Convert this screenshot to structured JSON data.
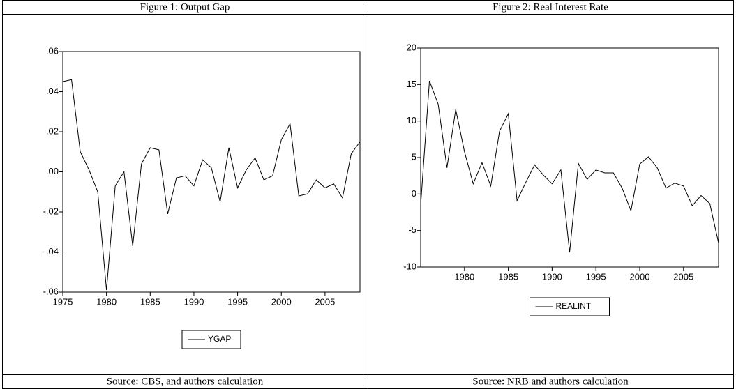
{
  "chart_data": [
    {
      "type": "line",
      "title": "Figure 1: Output Gap",
      "source": "Source: CBS, and authors calculation",
      "x": [
        1975,
        1976,
        1977,
        1978,
        1979,
        1980,
        1981,
        1982,
        1983,
        1984,
        1985,
        1986,
        1987,
        1988,
        1989,
        1990,
        1991,
        1992,
        1993,
        1994,
        1995,
        1996,
        1997,
        1998,
        1999,
        2000,
        2001,
        2002,
        2003,
        2004,
        2005,
        2006,
        2007,
        2008,
        2009
      ],
      "series": [
        {
          "name": "YGAP",
          "color": "#000000",
          "values": [
            0.045,
            0.046,
            0.01,
            0.001,
            -0.01,
            -0.059,
            -0.007,
            0.0,
            -0.037,
            0.004,
            0.012,
            0.011,
            -0.021,
            -0.003,
            -0.002,
            -0.007,
            0.006,
            0.002,
            -0.015,
            0.012,
            -0.008,
            0.001,
            0.007,
            -0.004,
            -0.002,
            0.016,
            0.024,
            -0.012,
            -0.011,
            -0.004,
            -0.008,
            -0.006,
            -0.013,
            0.009,
            0.015
          ]
        }
      ],
      "xlim": [
        1975,
        2009
      ],
      "xticks": [
        1975,
        1980,
        1985,
        1990,
        1995,
        2000,
        2005
      ],
      "ylim": [
        -0.06,
        0.06
      ],
      "yticks": [
        {
          "value": -0.06,
          "label": "-.06"
        },
        {
          "value": -0.04,
          "label": "-.04"
        },
        {
          "value": -0.02,
          "label": "-.02"
        },
        {
          "value": 0,
          "label": ".00"
        },
        {
          "value": 0.02,
          "label": ".02"
        },
        {
          "value": 0.04,
          "label": ".04"
        },
        {
          "value": 0.06,
          "label": ".06"
        }
      ],
      "grid": false,
      "legend": "bottom"
    },
    {
      "type": "line",
      "title": "Figure 2:  Real Interest Rate",
      "source": "Source: NRB and authors calculation",
      "x": [
        1975,
        1976,
        1977,
        1978,
        1979,
        1980,
        1981,
        1982,
        1983,
        1984,
        1985,
        1986,
        1987,
        1988,
        1989,
        1990,
        1991,
        1992,
        1993,
        1994,
        1995,
        1996,
        1997,
        1998,
        1999,
        2000,
        2001,
        2002,
        2003,
        2004,
        2005,
        2006,
        2007,
        2008,
        2009
      ],
      "series": [
        {
          "name": "REALINT",
          "color": "#000000",
          "values": [
            -1.5,
            15.5,
            12.3,
            3.6,
            11.6,
            5.8,
            1.4,
            4.3,
            1.1,
            8.6,
            11.0,
            -0.9,
            1.6,
            4.0,
            2.6,
            1.4,
            3.3,
            -8.0,
            4.2,
            2.0,
            3.3,
            2.9,
            2.9,
            0.8,
            -2.3,
            4.1,
            5.1,
            3.6,
            0.8,
            1.5,
            1.1,
            -1.6,
            -0.2,
            -1.3,
            -6.7
          ]
        }
      ],
      "xlim": [
        1975,
        2009
      ],
      "xticks": [
        1980,
        1985,
        1990,
        1995,
        2000,
        2005
      ],
      "ylim": [
        -10,
        20
      ],
      "yticks": [
        -10,
        -5,
        0,
        5,
        10,
        15,
        20
      ],
      "grid": false,
      "legend": "bottom"
    }
  ]
}
